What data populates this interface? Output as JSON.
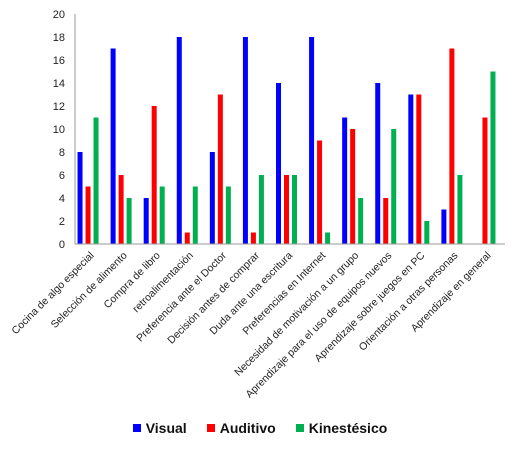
{
  "chart_data": {
    "type": "bar",
    "title": "",
    "xlabel": "",
    "ylabel": "",
    "ylim": [
      0,
      20
    ],
    "yticks": [
      0,
      2,
      4,
      6,
      8,
      10,
      12,
      14,
      16,
      18,
      20
    ],
    "grid": false,
    "legend_position": "bottom",
    "categories": [
      "Cocina de algo especial",
      "Selección de alimento",
      "Compra de libro",
      "retroalimentación",
      "Preferencia ante el Doctor",
      "Decisión antes de comprar",
      "Duda ante una escritura",
      "Preferencias en Internet",
      "Necesidad de motivación a un grupo",
      "Aprendizaje para el uso de equipos nuevos",
      "Aprendizaje sobre juegos en PC",
      "Orientación a otras personas",
      "Aprendizaje en general"
    ],
    "series": [
      {
        "name": "Visual",
        "color": "#0000ff",
        "values": [
          8,
          17,
          4,
          18,
          8,
          18,
          14,
          18,
          11,
          14,
          13,
          3,
          0
        ]
      },
      {
        "name": "Auditivo",
        "color": "#ff0000",
        "values": [
          5,
          6,
          12,
          1,
          13,
          1,
          6,
          9,
          10,
          4,
          13,
          17,
          11
        ]
      },
      {
        "name": "Kinestésico",
        "color": "#00b050",
        "values": [
          11,
          4,
          5,
          5,
          5,
          6,
          6,
          1,
          4,
          10,
          2,
          6,
          15
        ]
      }
    ]
  }
}
